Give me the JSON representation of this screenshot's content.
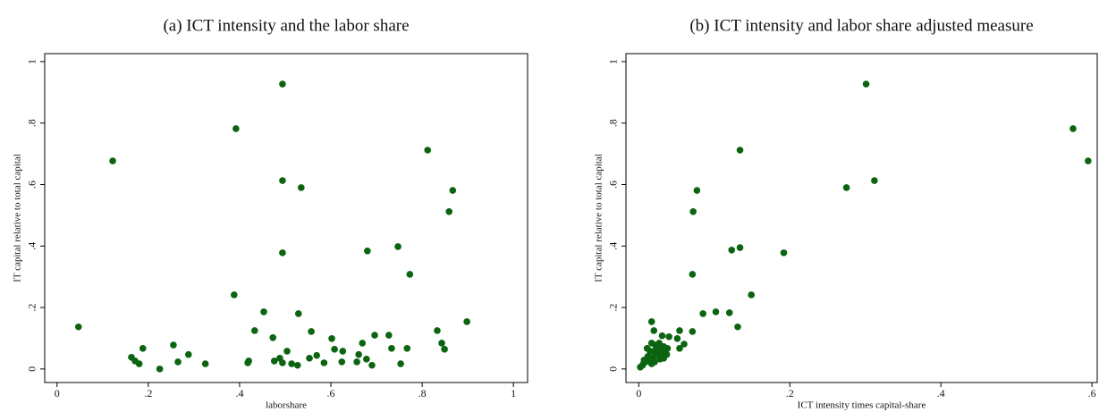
{
  "chart_data": [
    {
      "type": "scatter",
      "title": "(a) ICT intensity and the labor share",
      "x_label": "laborshare",
      "y_label": "IT capital relative to total capital",
      "color": "#0a6410",
      "xlim": [
        -0.027,
        1.031
      ],
      "ylim": [
        -0.044,
        1.026
      ],
      "xticks": [
        0,
        {
          "value": 0.2,
          "label": ".2"
        },
        {
          "value": 0.4,
          "label": ".4"
        },
        {
          "value": 0.6,
          "label": ".6"
        },
        {
          "value": 0.8,
          "label": ".8"
        },
        1
      ],
      "yticks": [
        0,
        {
          "value": 0.2,
          "label": ".2"
        },
        {
          "value": 0.4,
          "label": ".4"
        },
        {
          "value": 0.6,
          "label": ".6"
        },
        {
          "value": 0.8,
          "label": ".8"
        },
        1
      ],
      "x": [
        0.047,
        0.122,
        0.163,
        0.171,
        0.18,
        0.188,
        0.225,
        0.255,
        0.265,
        0.288,
        0.325,
        0.392,
        0.388,
        0.418,
        0.42,
        0.433,
        0.453,
        0.473,
        0.476,
        0.488,
        0.494,
        0.494,
        0.494,
        0.494,
        0.504,
        0.514,
        0.527,
        0.529,
        0.535,
        0.553,
        0.557,
        0.569,
        0.585,
        0.602,
        0.608,
        0.624,
        0.626,
        0.657,
        0.661,
        0.669,
        0.678,
        0.68,
        0.69,
        0.696,
        0.727,
        0.733,
        0.747,
        0.753,
        0.767,
        0.773,
        0.812,
        0.833,
        0.843,
        0.849,
        0.859,
        0.867,
        0.898
      ],
      "values": [
        0.137,
        0.677,
        0.038,
        0.026,
        0.017,
        0.067,
        0.0,
        0.078,
        0.023,
        0.047,
        0.017,
        0.782,
        0.241,
        0.02,
        0.026,
        0.125,
        0.186,
        0.102,
        0.026,
        0.035,
        0.02,
        0.927,
        0.613,
        0.378,
        0.058,
        0.017,
        0.012,
        0.18,
        0.59,
        0.035,
        0.122,
        0.044,
        0.02,
        0.099,
        0.064,
        0.023,
        0.058,
        0.023,
        0.047,
        0.084,
        0.032,
        0.384,
        0.012,
        0.11,
        0.11,
        0.067,
        0.398,
        0.017,
        0.067,
        0.308,
        0.712,
        0.125,
        0.084,
        0.064,
        0.512,
        0.581,
        0.154
      ]
    },
    {
      "type": "scatter",
      "title": "(b) ICT intensity and labor share adjusted measure",
      "x_label": "ICT intensity times capital-share",
      "y_label": "IT capital relative to total capital",
      "color": "#0a6410",
      "xlim": [
        -0.017,
        0.607
      ],
      "ylim": [
        -0.044,
        1.026
      ],
      "xticks": [
        0,
        {
          "value": 0.2,
          "label": ".2"
        },
        {
          "value": 0.4,
          "label": ".4"
        },
        {
          "value": 0.6,
          "label": ".6"
        }
      ],
      "yticks": [
        0,
        {
          "value": 0.2,
          "label": ".2"
        },
        {
          "value": 0.4,
          "label": ".4"
        },
        {
          "value": 0.6,
          "label": ".6"
        },
        {
          "value": 0.8,
          "label": ".8"
        },
        1
      ],
      "x": [
        0.301,
        0.575,
        0.595,
        0.134,
        0.077,
        0.072,
        0.275,
        0.312,
        0.134,
        0.123,
        0.192,
        0.071,
        0.149,
        0.12,
        0.102,
        0.085,
        0.131,
        0.071,
        0.054,
        0.051,
        0.054,
        0.06,
        0.04,
        0.031,
        0.017,
        0.02,
        0.011,
        0.017,
        0.022,
        0.027,
        0.032,
        0.037,
        0.025,
        0.019,
        0.014,
        0.009,
        0.006,
        0.002,
        0.005,
        0.012,
        0.021,
        0.017,
        0.028,
        0.033,
        0.007,
        0.026,
        0.033,
        0.015,
        0.038,
        0.02
      ],
      "values": [
        0.927,
        0.782,
        0.677,
        0.712,
        0.581,
        0.512,
        0.59,
        0.613,
        0.395,
        0.387,
        0.378,
        0.308,
        0.241,
        0.183,
        0.186,
        0.18,
        0.137,
        0.122,
        0.125,
        0.099,
        0.067,
        0.081,
        0.105,
        0.108,
        0.154,
        0.125,
        0.067,
        0.084,
        0.078,
        0.084,
        0.052,
        0.047,
        0.047,
        0.038,
        0.032,
        0.023,
        0.017,
        0.006,
        0.012,
        0.041,
        0.023,
        0.017,
        0.032,
        0.035,
        0.029,
        0.064,
        0.073,
        0.058,
        0.067,
        0.058
      ]
    }
  ]
}
